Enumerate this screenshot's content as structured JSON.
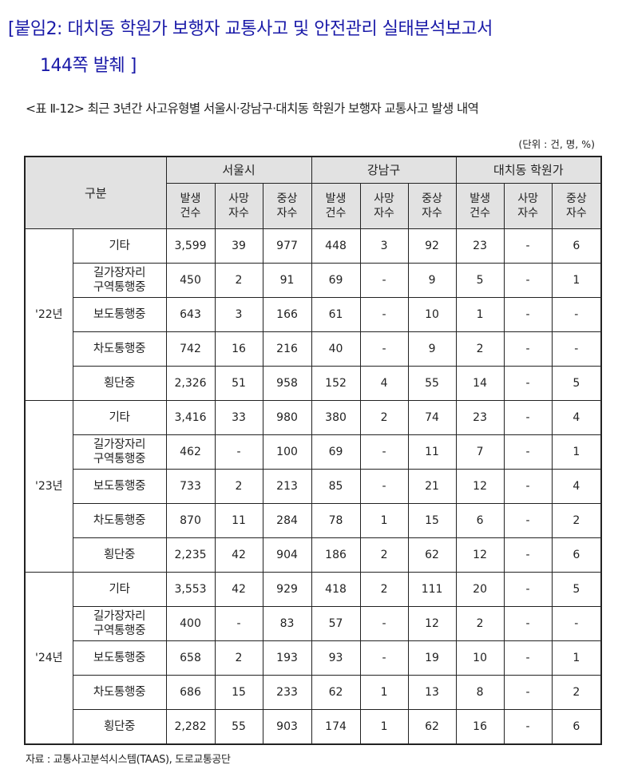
{
  "note": {
    "line1": "[붙임2: 대치동 학원가 보행자 교통사고 및 안전관리 실태분석보고서",
    "line2": "144쪽 발췌 ]",
    "color": "#1a1aa8"
  },
  "caption": "<표 Ⅱ-12> 최근 3년간 사고유형별 서울시·강남구·대치동 학원가 보행자 교통사고 발생 내역",
  "unit": "(단위 : 건, 명, %)",
  "table": {
    "header_category": "구분",
    "groups": [
      "서울시",
      "강남구",
      "대치동 학원가"
    ],
    "subheaders": [
      [
        "발생",
        "건수"
      ],
      [
        "사망",
        "자수"
      ],
      [
        "중상",
        "자수"
      ]
    ],
    "years": [
      {
        "label": "'22년",
        "rows": [
          {
            "type": [
              "기타"
            ],
            "values": [
              "3,599",
              "39",
              "977",
              "448",
              "3",
              "92",
              "23",
              "-",
              "6"
            ]
          },
          {
            "type": [
              "길가장자리",
              "구역통행중"
            ],
            "values": [
              "450",
              "2",
              "91",
              "69",
              "-",
              "9",
              "5",
              "-",
              "1"
            ]
          },
          {
            "type": [
              "보도통행중"
            ],
            "values": [
              "643",
              "3",
              "166",
              "61",
              "-",
              "10",
              "1",
              "-",
              "-"
            ]
          },
          {
            "type": [
              "차도통행중"
            ],
            "values": [
              "742",
              "16",
              "216",
              "40",
              "-",
              "9",
              "2",
              "-",
              "-"
            ]
          },
          {
            "type": [
              "횡단중"
            ],
            "values": [
              "2,326",
              "51",
              "958",
              "152",
              "4",
              "55",
              "14",
              "-",
              "5"
            ]
          }
        ]
      },
      {
        "label": "'23년",
        "rows": [
          {
            "type": [
              "기타"
            ],
            "values": [
              "3,416",
              "33",
              "980",
              "380",
              "2",
              "74",
              "23",
              "-",
              "4"
            ]
          },
          {
            "type": [
              "길가장자리",
              "구역통행중"
            ],
            "values": [
              "462",
              "-",
              "100",
              "69",
              "-",
              "11",
              "7",
              "-",
              "1"
            ]
          },
          {
            "type": [
              "보도통행중"
            ],
            "values": [
              "733",
              "2",
              "213",
              "85",
              "-",
              "21",
              "12",
              "-",
              "4"
            ]
          },
          {
            "type": [
              "차도통행중"
            ],
            "values": [
              "870",
              "11",
              "284",
              "78",
              "1",
              "15",
              "6",
              "-",
              "2"
            ]
          },
          {
            "type": [
              "횡단중"
            ],
            "values": [
              "2,235",
              "42",
              "904",
              "186",
              "2",
              "62",
              "12",
              "-",
              "6"
            ]
          }
        ]
      },
      {
        "label": "'24년",
        "rows": [
          {
            "type": [
              "기타"
            ],
            "values": [
              "3,553",
              "42",
              "929",
              "418",
              "2",
              "111",
              "20",
              "-",
              "5"
            ]
          },
          {
            "type": [
              "길가장자리",
              "구역통행중"
            ],
            "values": [
              "400",
              "-",
              "83",
              "57",
              "-",
              "12",
              "2",
              "-",
              "-"
            ]
          },
          {
            "type": [
              "보도통행중"
            ],
            "values": [
              "658",
              "2",
              "193",
              "93",
              "-",
              "19",
              "10",
              "-",
              "1"
            ]
          },
          {
            "type": [
              "차도통행중"
            ],
            "values": [
              "686",
              "15",
              "233",
              "62",
              "1",
              "13",
              "8",
              "-",
              "2"
            ]
          },
          {
            "type": [
              "횡단중"
            ],
            "values": [
              "2,282",
              "55",
              "903",
              "174",
              "1",
              "62",
              "16",
              "-",
              "6"
            ]
          }
        ]
      }
    ]
  },
  "source": "자료 : 교통사고분석시스템(TAAS), 도로교통공단"
}
